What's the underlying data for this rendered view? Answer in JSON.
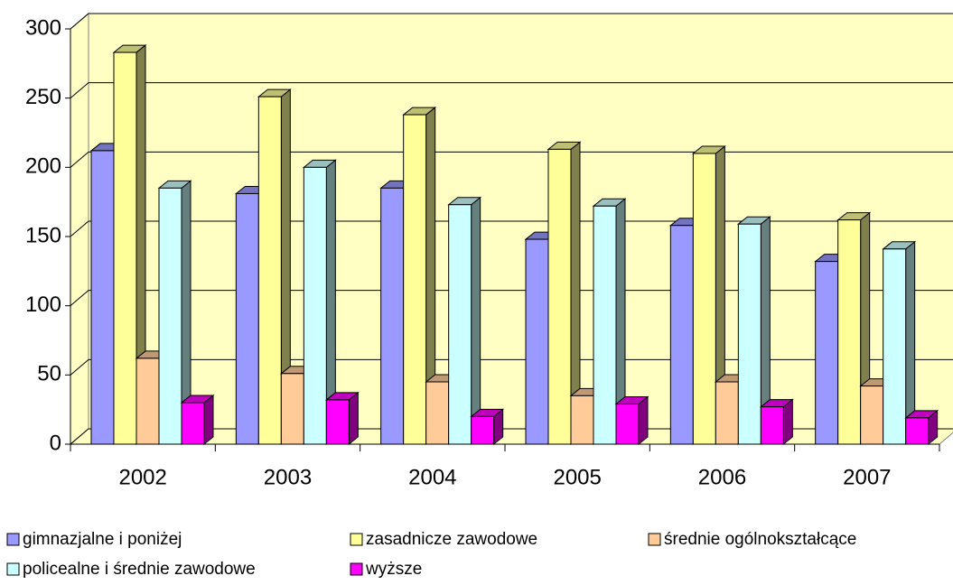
{
  "chart_data": {
    "type": "bar3d",
    "categories": [
      "2002",
      "2003",
      "2004",
      "2005",
      "2006",
      "2007"
    ],
    "series": [
      {
        "name": "gimnazjalne i poniżej",
        "color": "#9999ff",
        "values": [
          212,
          181,
          185,
          148,
          158,
          132
        ]
      },
      {
        "name": "zasadnicze zawodowe",
        "color": "#ffff99",
        "values": [
          283,
          251,
          238,
          213,
          210,
          162
        ]
      },
      {
        "name": "średnie ogólnokształcące",
        "color": "#ffcc99",
        "values": [
          62,
          51,
          45,
          35,
          45,
          42
        ]
      },
      {
        "name": "policealne i średnie zawodowe",
        "color": "#ccffff",
        "values": [
          185,
          200,
          173,
          172,
          159,
          141
        ]
      },
      {
        "name": "wyższe",
        "color": "#ff00ff",
        "values": [
          30,
          32,
          20,
          29,
          27,
          19
        ]
      }
    ],
    "ylim": [
      0,
      300
    ],
    "yticks": [
      0,
      50,
      100,
      150,
      200,
      250,
      300
    ],
    "grid": true,
    "legend": "bottom"
  }
}
